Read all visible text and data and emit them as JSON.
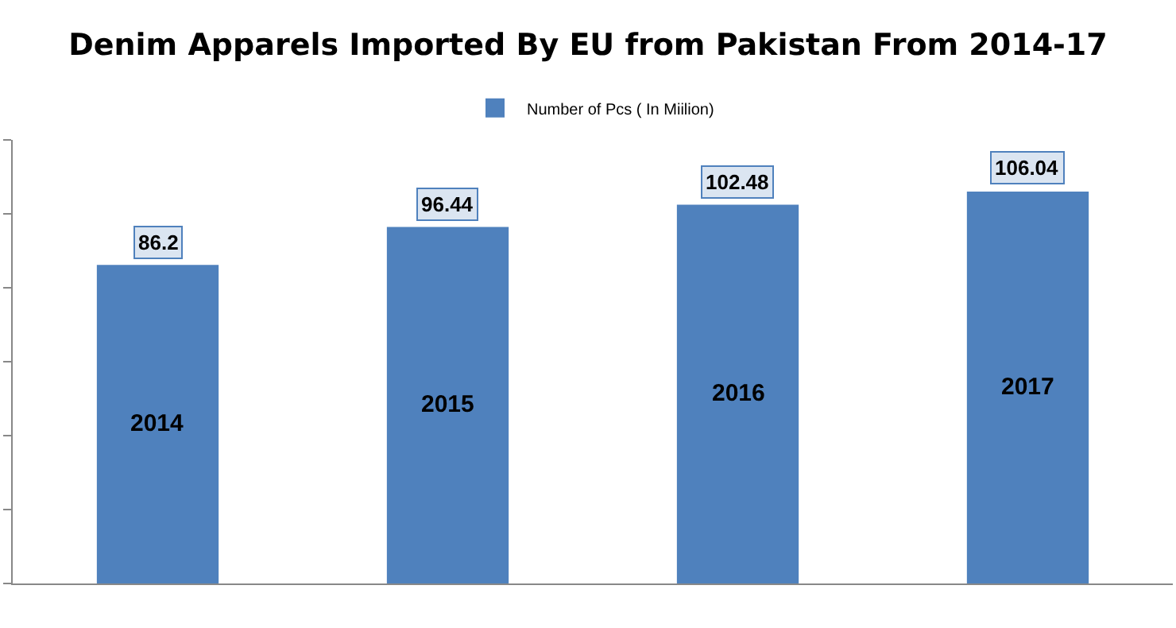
{
  "chart_data": {
    "type": "bar",
    "title": "Denim Apparels Imported By EU from Pakistan From 2014-17",
    "categories": [
      "2014",
      "2015",
      "2016",
      "2017"
    ],
    "series": [
      {
        "name": "Number of Pcs ( In Miilion)",
        "color": "#4f81bd",
        "values": [
          86.2,
          96.44,
          102.48,
          106.04
        ]
      }
    ],
    "ylim": [
      0,
      120
    ],
    "yticks": [
      {
        "value": 0,
        "label": null
      },
      {
        "value": 20,
        "label": null
      },
      {
        "value": 40,
        "label": null
      },
      {
        "value": 60,
        "label": null
      },
      {
        "value": 80,
        "label": null
      },
      {
        "value": 100,
        "label": null
      },
      {
        "value": 120,
        "label": null
      }
    ],
    "data_labels": true,
    "legend": "top",
    "tick_labels": "x"
  }
}
